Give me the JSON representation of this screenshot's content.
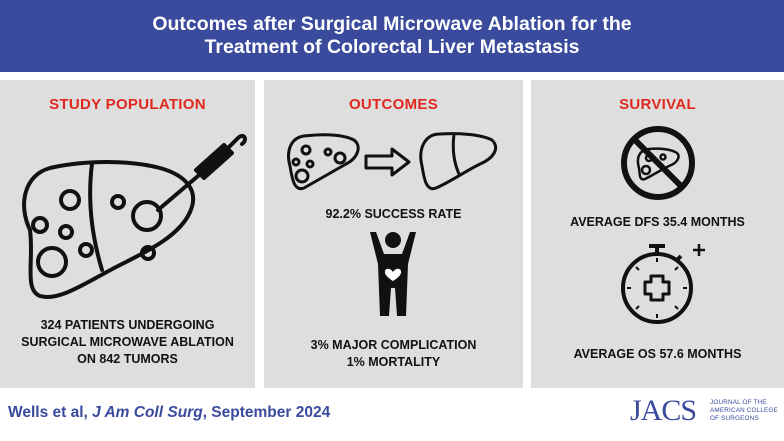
{
  "header": {
    "title_line1": "Outcomes after Surgical Microwave Ablation for the",
    "title_line2": "Treatment of Colorectal Liver Metastasis"
  },
  "study_population": {
    "title": "STUDY POPULATION",
    "line1": "324 PATIENTS UNDERGOING",
    "line2": "SURGICAL MICROWAVE ABLATION",
    "line3": "ON 842 TUMORS"
  },
  "outcomes": {
    "title": "OUTCOMES",
    "success": "92.2% SUCCESS RATE",
    "complication": "3% MAJOR COMPLICATION",
    "mortality": "1% MORTALITY"
  },
  "survival": {
    "title": "SURVIVAL",
    "dfs": "AVERAGE DFS 35.4 MONTHS",
    "os": "AVERAGE OS 57.6 MONTHS"
  },
  "footer": {
    "authors": "Wells et al, ",
    "journal": "J Am Coll Surg",
    "date": ", September 2024",
    "logo_mark": "JACS",
    "logo_text_1": "JOURNAL OF THE",
    "logo_text_2": "AMERICAN COLLEGE",
    "logo_text_3": "OF SURGEONS"
  },
  "colors": {
    "header_bg": "#3a4a9c",
    "panel_bg": "#dedede",
    "title_red": "#e0281e"
  },
  "icons": [
    "liver-ablation-icon",
    "liver-tumors-icon",
    "arrow-right-icon",
    "healthy-liver-icon",
    "person-heart-icon",
    "no-tumor-liver-icon",
    "stopwatch-cross-icon"
  ]
}
